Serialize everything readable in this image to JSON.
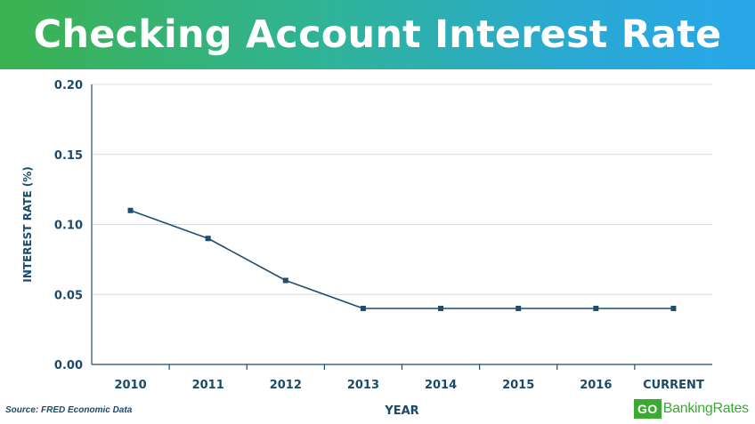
{
  "header": {
    "title": "Checking Account Interest Rate"
  },
  "footer": {
    "source": "Source: FRED Economic Data"
  },
  "brand": {
    "go": "GO",
    "rest": "BankingRates"
  },
  "chart_data": {
    "type": "line",
    "title": "Checking Account Interest Rate",
    "xlabel": "YEAR",
    "ylabel": "INTEREST RATE (%)",
    "categories": [
      "2010",
      "2011",
      "2012",
      "2013",
      "2014",
      "2015",
      "2016",
      "CURRENT"
    ],
    "series": [
      {
        "values": [
          0.11,
          0.09,
          0.06,
          0.04,
          0.04,
          0.04,
          0.04,
          0.04
        ]
      }
    ],
    "ylim": [
      0,
      0.2
    ],
    "yticks": [
      "0.00",
      "0.05",
      "0.10",
      "0.15",
      "0.20"
    ],
    "grid": true,
    "legend": "none",
    "colors": {
      "line": "#1e4d6e",
      "text": "#1a4a6b",
      "grid": "#d9dde0"
    }
  }
}
